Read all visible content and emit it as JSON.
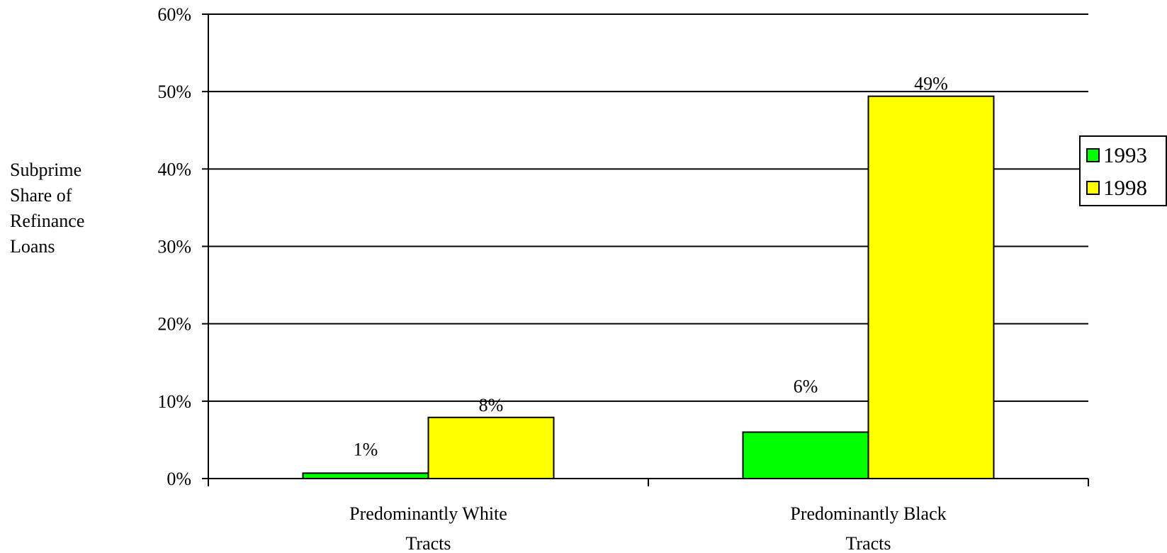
{
  "chart_data": {
    "type": "bar",
    "title": "",
    "xlabel": "",
    "ylabel_lines": [
      "Subprime",
      "Share of",
      "Refinance",
      "Loans"
    ],
    "categories": [
      [
        "Predominantly White",
        "Tracts"
      ],
      [
        "Predominantly Black",
        "Tracts"
      ]
    ],
    "series": [
      {
        "name": "1993",
        "color": "#00ff00",
        "values": [
          0.7,
          6.0
        ],
        "labels": [
          "1%",
          "6%"
        ]
      },
      {
        "name": "1998",
        "color": "#ffff00",
        "values": [
          7.9,
          49.4
        ],
        "labels": [
          "8%",
          "49%"
        ]
      }
    ],
    "ylim": [
      0,
      60
    ],
    "yticks": [
      0,
      10,
      20,
      30,
      40,
      50,
      60
    ],
    "ytick_labels": [
      "0%",
      "10%",
      "20%",
      "30%",
      "40%",
      "50%",
      "60%"
    ],
    "grid": true,
    "legend_position": "right"
  }
}
